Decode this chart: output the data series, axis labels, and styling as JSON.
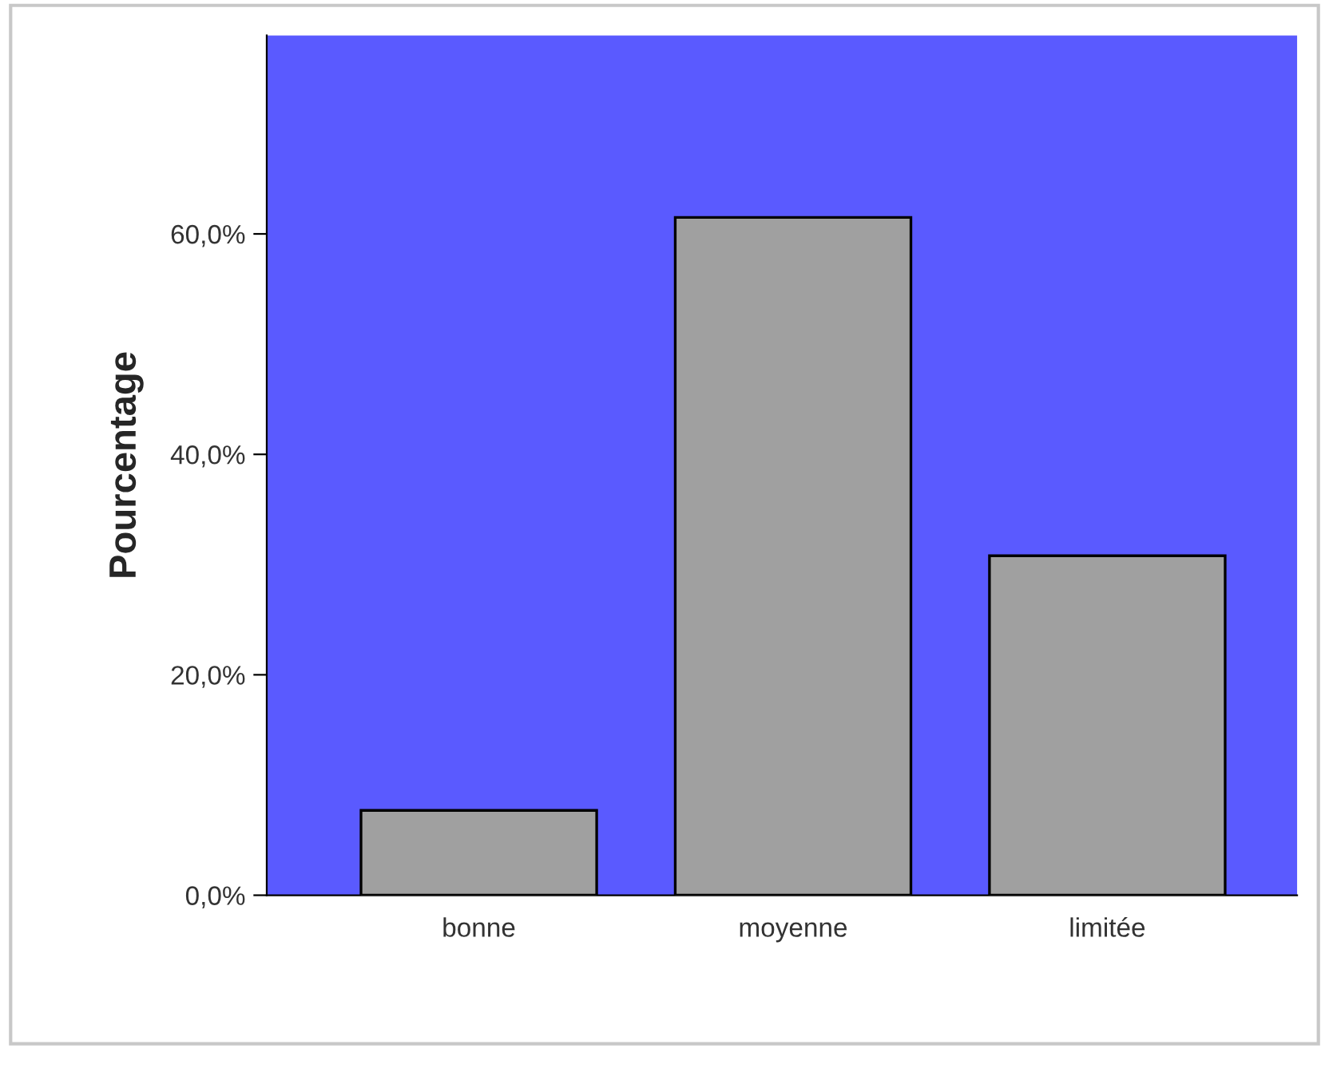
{
  "chart_data": {
    "type": "bar",
    "ylabel": "Pourcentage",
    "categories": [
      "bonne",
      "moyenne",
      "limitée"
    ],
    "values": [
      7.7,
      61.5,
      30.8
    ],
    "color": "#a0a0a0",
    "ylim": [
      0,
      78
    ],
    "yticks": [
      {
        "value": 0,
        "label": "0,0%"
      },
      {
        "value": 20,
        "label": "20,0%"
      },
      {
        "value": 40,
        "label": "40,0%"
      },
      {
        "value": 60,
        "label": "60,0%"
      }
    ],
    "grid": false
  }
}
